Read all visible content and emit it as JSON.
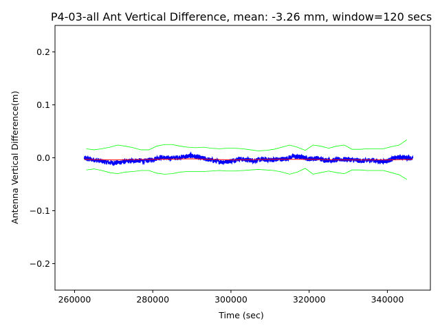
{
  "chart_data": {
    "type": "line",
    "title": "P4-03-all Ant Vertical Difference, mean: -3.26 mm, window=120 secs",
    "xlabel": "Time (sec)",
    "ylabel": "Antenna Vertical Difference(m)",
    "xlim": [
      255000,
      351000
    ],
    "ylim": [
      -0.25,
      0.25
    ],
    "xticks": [
      260000,
      280000,
      300000,
      320000,
      340000
    ],
    "yticks": [
      -0.2,
      -0.1,
      0.0,
      0.1,
      0.2
    ],
    "ytick_labels": [
      "−0.2",
      "−0.1",
      "0.0",
      "0.1",
      "0.2"
    ],
    "grid": false,
    "legend": "none",
    "series": [
      {
        "color": "#0000ff",
        "style": "noisy-line",
        "x": [
          262500,
          264000,
          266000,
          268000,
          270000,
          272000,
          274000,
          276000,
          278000,
          280000,
          282000,
          284000,
          286000,
          288000,
          290000,
          292000,
          294000,
          296000,
          298000,
          300000,
          302000,
          304000,
          306000,
          308000,
          310000,
          312000,
          314000,
          316000,
          318000,
          320000,
          322000,
          324000,
          326000,
          328000,
          330000,
          332000,
          334000,
          336000,
          338000,
          340000,
          342000,
          344000,
          346500
        ],
        "y": [
          -0.001,
          -0.003,
          -0.005,
          -0.008,
          -0.01,
          -0.008,
          -0.006,
          -0.005,
          -0.006,
          -0.003,
          0.001,
          -0.001,
          0.0,
          0.002,
          0.004,
          0.0,
          -0.003,
          -0.006,
          -0.008,
          -0.006,
          -0.002,
          -0.004,
          -0.005,
          -0.003,
          -0.004,
          -0.003,
          -0.002,
          0.003,
          0.001,
          -0.002,
          -0.001,
          -0.004,
          -0.005,
          -0.003,
          -0.003,
          -0.005,
          -0.006,
          -0.004,
          -0.007,
          -0.006,
          0.0,
          0.001,
          -0.001
        ]
      },
      {
        "color": "#ff0000",
        "style": "line",
        "x": [
          262500,
          270000,
          280000,
          290000,
          300000,
          310000,
          320000,
          330000,
          340000,
          346500
        ],
        "y": [
          -0.003,
          -0.004,
          -0.003,
          -0.002,
          -0.004,
          -0.003,
          -0.003,
          -0.004,
          -0.004,
          -0.003
        ]
      },
      {
        "color": "#00ff00",
        "style": "line",
        "x": [
          263000,
          265000,
          267000,
          269000,
          271000,
          273000,
          275000,
          277000,
          279000,
          281000,
          283000,
          285000,
          287000,
          289000,
          291000,
          293000,
          295000,
          297000,
          299000,
          301000,
          303000,
          305000,
          307000,
          309000,
          311000,
          313000,
          315000,
          317000,
          319000,
          321000,
          323000,
          325000,
          327000,
          329000,
          331000,
          333000,
          335000,
          337000,
          339000,
          341000,
          343000,
          345000
        ],
        "y": [
          0.017,
          0.015,
          0.017,
          0.02,
          0.024,
          0.022,
          0.019,
          0.015,
          0.015,
          0.022,
          0.025,
          0.025,
          0.022,
          0.02,
          0.019,
          0.02,
          0.018,
          0.017,
          0.018,
          0.018,
          0.017,
          0.015,
          0.013,
          0.014,
          0.016,
          0.02,
          0.024,
          0.02,
          0.014,
          0.024,
          0.022,
          0.018,
          0.022,
          0.024,
          0.016,
          0.016,
          0.017,
          0.017,
          0.017,
          0.021,
          0.024,
          0.034
        ]
      },
      {
        "color": "#00ff00",
        "style": "line",
        "x": [
          263000,
          265000,
          267000,
          269000,
          271000,
          273000,
          275000,
          277000,
          279000,
          281000,
          283000,
          285000,
          287000,
          289000,
          291000,
          293000,
          295000,
          297000,
          299000,
          301000,
          303000,
          305000,
          307000,
          309000,
          311000,
          313000,
          315000,
          317000,
          319000,
          321000,
          323000,
          325000,
          327000,
          329000,
          331000,
          333000,
          335000,
          337000,
          339000,
          341000,
          343000,
          345000
        ],
        "y": [
          -0.023,
          -0.021,
          -0.024,
          -0.028,
          -0.03,
          -0.027,
          -0.026,
          -0.024,
          -0.024,
          -0.029,
          -0.031,
          -0.03,
          -0.027,
          -0.026,
          -0.026,
          -0.026,
          -0.025,
          -0.024,
          -0.025,
          -0.025,
          -0.024,
          -0.023,
          -0.022,
          -0.023,
          -0.024,
          -0.027,
          -0.031,
          -0.027,
          -0.02,
          -0.031,
          -0.028,
          -0.025,
          -0.028,
          -0.03,
          -0.023,
          -0.023,
          -0.024,
          -0.024,
          -0.024,
          -0.028,
          -0.032,
          -0.041
        ]
      }
    ]
  }
}
